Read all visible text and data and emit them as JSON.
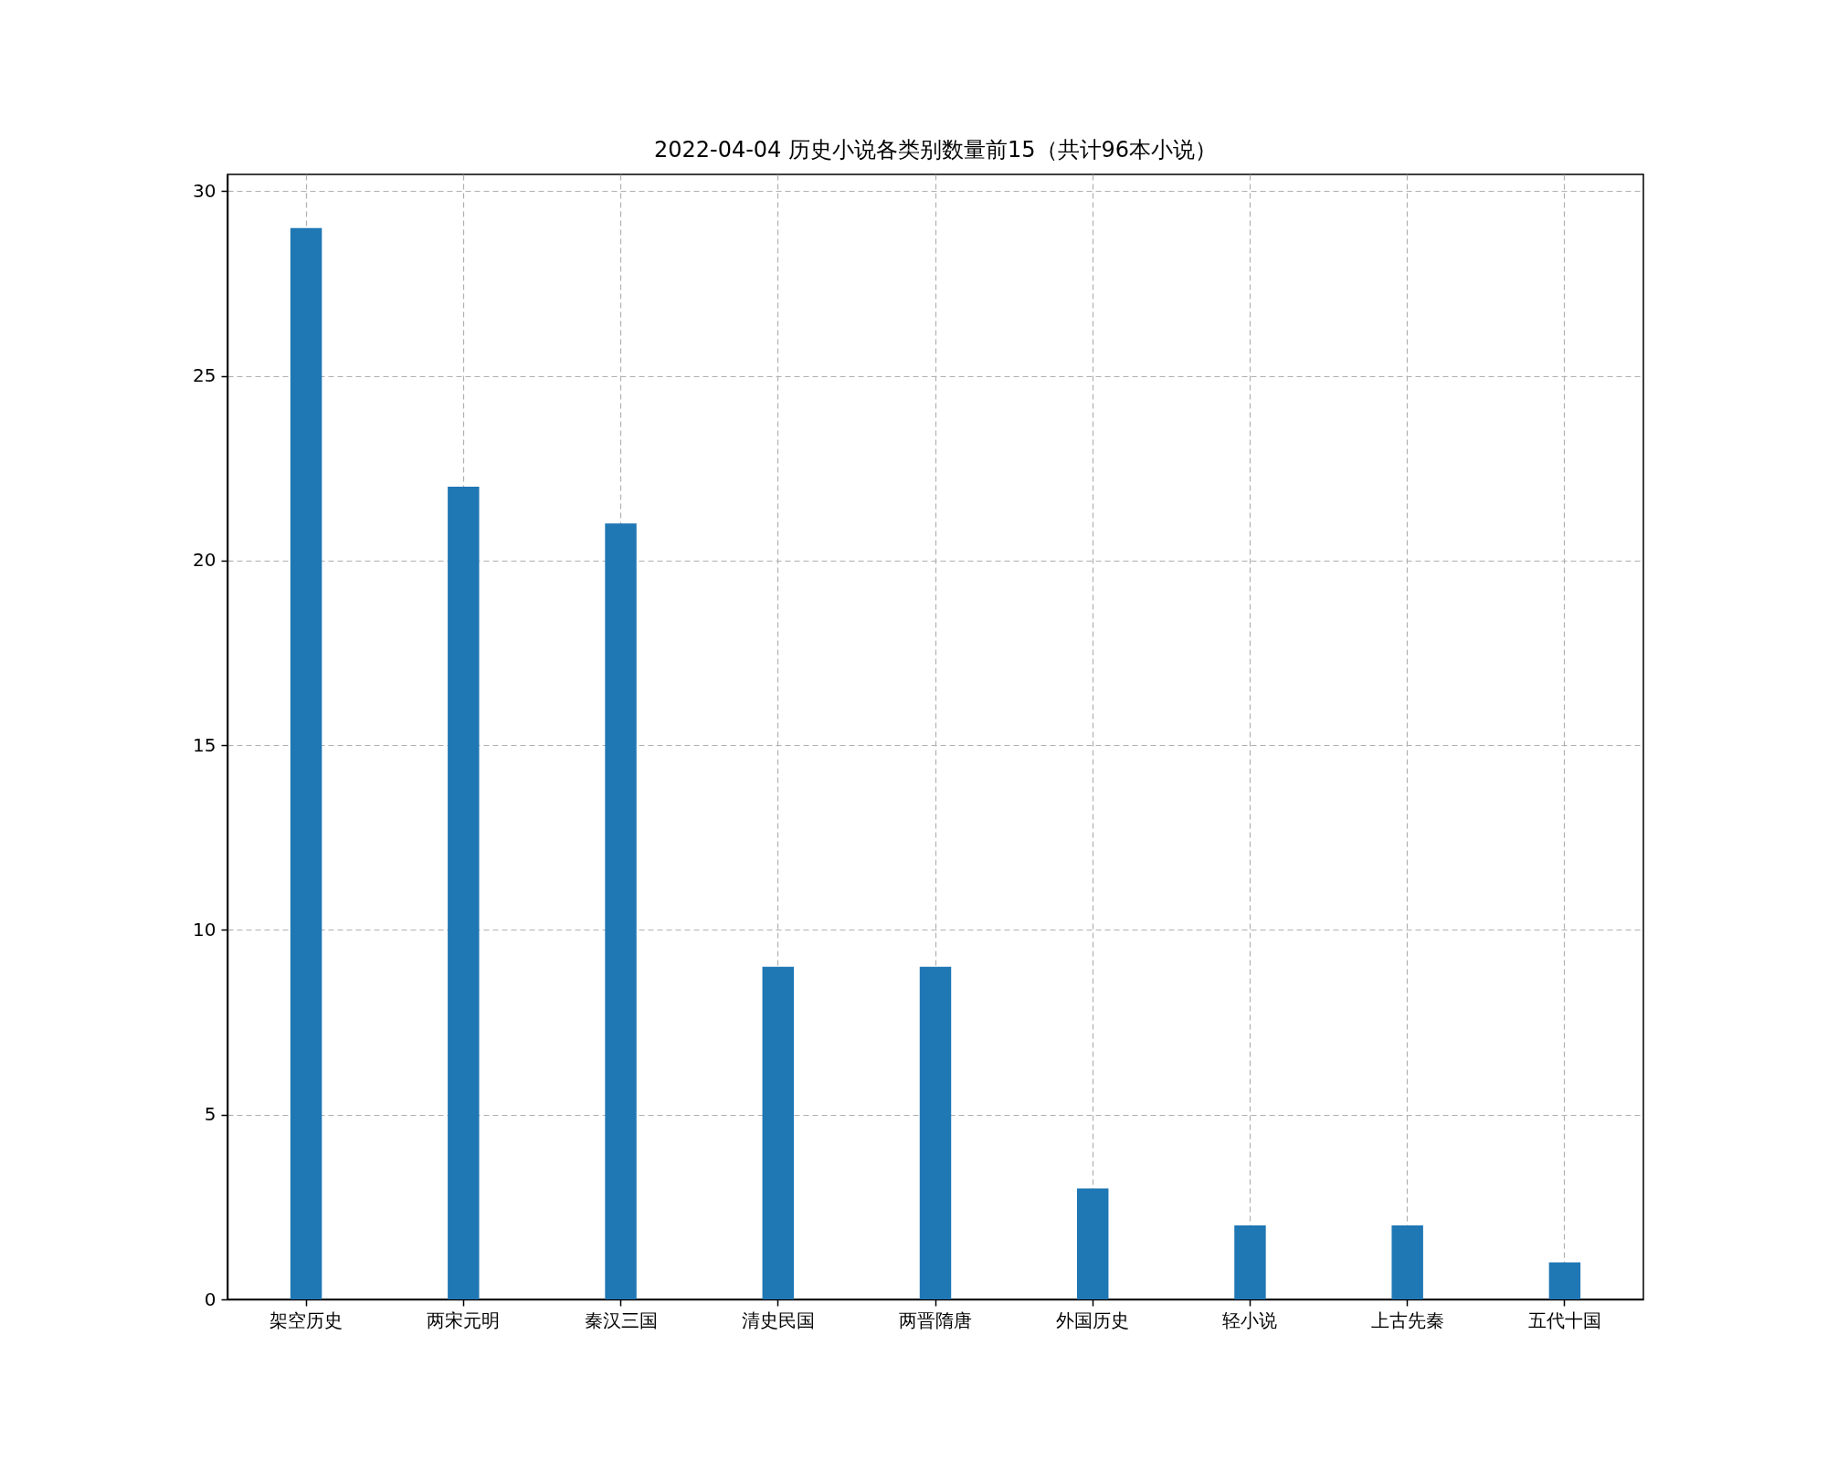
{
  "chart_data": {
    "type": "bar",
    "title": "2022-04-04 历史小说各类别数量前15（共计96本小说）",
    "categories": [
      "架空历史",
      "两宋元明",
      "秦汉三国",
      "清史民国",
      "两晋隋唐",
      "外国历史",
      "轻小说",
      "上古先秦",
      "五代十国"
    ],
    "values": [
      29,
      22,
      21,
      9,
      9,
      3,
      2,
      2,
      1
    ],
    "color": "#1f77b4",
    "ylim": [
      0,
      30.45
    ],
    "yticks": [
      0,
      5,
      10,
      15,
      20,
      25,
      30
    ],
    "grid": true
  }
}
